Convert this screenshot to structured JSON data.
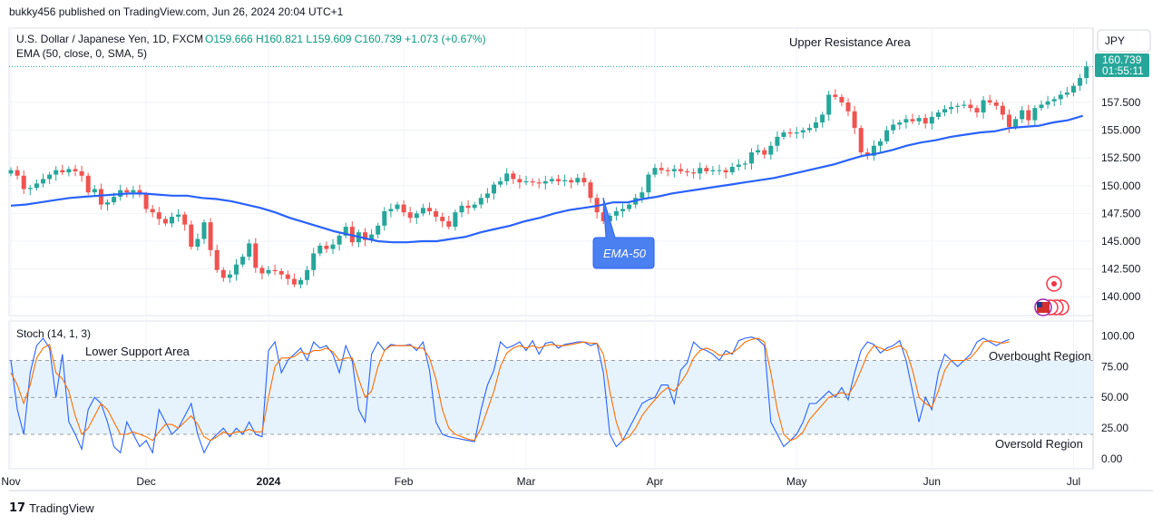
{
  "header": {
    "published": "bukky456 published on TradingView.com, Jun 26, 2024 20:04 UTC+1"
  },
  "footer": {
    "brand": "TradingView"
  },
  "chart_data": [
    {
      "type": "candlestick",
      "title": "U.S. Dollar / Japanese Yen, 1D, FXCM",
      "ohlc_label": "O159.666 H160.821 L159.609 C160.739 +1.073 (+0.67%)",
      "indicator_label": "EMA (50, close, 0, SMA, 5)",
      "currency": "JPY",
      "last_price": "160.739",
      "countdown": "01:55:11",
      "ylim": [
        138.3,
        164.2
      ],
      "y_ticks": [
        "157.500",
        "155.000",
        "152.500",
        "150.000",
        "147.500",
        "145.000",
        "142.500",
        "140.000"
      ],
      "x_ticks": [
        "Nov",
        "Dec",
        "2024",
        "Feb",
        "Mar",
        "Apr",
        "May",
        "Jun",
        "Jul"
      ],
      "x_tick_index": [
        0,
        21,
        40,
        61,
        80,
        100,
        122,
        143,
        165
      ],
      "series_close": [
        151.4,
        150.9,
        149.7,
        149.8,
        150.2,
        150.6,
        151.0,
        151.4,
        151.2,
        151.5,
        151.3,
        150.9,
        149.4,
        149.7,
        148.3,
        148.5,
        149.0,
        149.6,
        149.4,
        149.6,
        149.2,
        147.9,
        147.6,
        147.0,
        146.6,
        147.2,
        147.4,
        146.5,
        144.5,
        145.2,
        146.7,
        144.2,
        142.4,
        141.7,
        142.0,
        142.9,
        143.6,
        144.8,
        142.6,
        142.1,
        142.4,
        142.3,
        142.0,
        141.6,
        141.1,
        141.5,
        142.4,
        143.9,
        144.6,
        144.3,
        144.7,
        145.5,
        146.3,
        144.9,
        145.8,
        145.1,
        145.6,
        146.4,
        147.7,
        147.9,
        148.3,
        147.6,
        147.1,
        147.5,
        148.0,
        147.7,
        147.2,
        146.8,
        146.3,
        147.6,
        148.2,
        148.0,
        148.3,
        148.9,
        149.3,
        150.1,
        150.4,
        151.1,
        150.6,
        150.3,
        150.4,
        150.3,
        150.2,
        150.4,
        150.6,
        150.4,
        150.5,
        150.3,
        150.7,
        150.3,
        148.9,
        147.6,
        146.8,
        147.3,
        147.7,
        147.9,
        148.3,
        148.9,
        149.4,
        151.0,
        151.6,
        151.4,
        151.3,
        151.5,
        151.3,
        151.2,
        151.1,
        151.6,
        151.3,
        151.4,
        151.4,
        151.2,
        151.7,
        151.9,
        152.0,
        153.0,
        153.2,
        152.8,
        153.6,
        154.4,
        154.8,
        154.7,
        154.8,
        155.0,
        155.2,
        155.7,
        156.4,
        158.2,
        158.0,
        157.5,
        156.7,
        155.2,
        153.0,
        152.7,
        153.6,
        154.0,
        155.0,
        155.5,
        155.7,
        156.0,
        155.8,
        156.1,
        155.6,
        156.2,
        156.6,
        156.9,
        157.1,
        157.2,
        157.3,
        157.0,
        156.6,
        157.7,
        157.5,
        157.2,
        156.4,
        155.3,
        156.0,
        156.8,
        155.9,
        157.0,
        157.3,
        157.6,
        157.8,
        158.2,
        158.4,
        159.0,
        159.7,
        160.74
      ],
      "ema50": [
        148.2,
        148.3,
        148.5,
        148.7,
        148.9,
        149.0,
        149.1,
        149.2,
        149.3,
        149.3,
        149.2,
        149.1,
        149.1,
        148.9,
        148.8,
        148.6,
        148.3,
        148.0,
        147.6,
        147.1,
        146.7,
        146.3,
        145.9,
        145.6,
        145.3,
        145.0,
        144.9,
        144.9,
        145.0,
        145.0,
        145.2,
        145.4,
        145.8,
        146.1,
        146.4,
        146.8,
        147.1,
        147.5,
        147.8,
        148.0,
        148.2,
        148.5,
        148.5,
        148.8,
        149.0,
        149.3,
        149.5,
        149.7,
        149.9,
        150.1,
        150.3,
        150.5,
        150.7,
        151.0,
        151.3,
        151.6,
        151.9,
        152.3,
        152.7,
        152.9,
        153.2,
        153.6,
        153.9,
        154.1,
        154.4,
        154.6,
        154.8,
        154.9,
        155.2,
        155.3,
        155.4,
        155.7,
        155.9,
        156.3
      ],
      "ema50_start_index": 0,
      "ema50_step": 2.28,
      "stoch_title": "Stoch (14, 1, 3)",
      "stoch_ylim": [
        -8,
        112
      ],
      "stoch_ticks": [
        "100.00",
        "75.00",
        "50.00",
        "25.00",
        "0.00"
      ],
      "stoch_levels": [
        80,
        50,
        20
      ],
      "stoch_k": [
        80,
        40,
        20,
        70,
        92,
        98,
        90,
        50,
        85,
        30,
        20,
        8,
        40,
        50,
        45,
        30,
        10,
        5,
        30,
        20,
        10,
        15,
        5,
        40,
        30,
        20,
        25,
        35,
        45,
        20,
        5,
        15,
        20,
        25,
        18,
        25,
        20,
        30,
        20,
        18,
        88,
        95,
        70,
        80,
        85,
        90,
        80,
        95,
        90,
        92,
        85,
        70,
        92,
        80,
        40,
        30,
        85,
        95,
        88,
        93,
        92,
        92,
        93,
        88,
        95,
        72,
        30,
        20,
        18,
        17,
        16,
        15,
        14,
        40,
        60,
        72,
        95,
        90,
        92,
        95,
        88,
        96,
        85,
        94,
        95,
        90,
        93,
        94,
        95,
        95,
        92,
        94,
        70,
        20,
        10,
        15,
        25,
        35,
        45,
        48,
        50,
        60,
        60,
        45,
        72,
        78,
        95,
        90,
        88,
        85,
        80,
        88,
        85,
        96,
        98,
        99,
        97,
        92,
        30,
        20,
        10,
        15,
        20,
        30,
        45,
        45,
        50,
        55,
        50,
        58,
        48,
        70,
        88,
        95,
        93,
        86,
        90,
        92,
        96,
        80,
        55,
        30,
        50,
        40,
        70,
        85,
        80,
        75,
        80,
        85,
        95,
        98,
        95,
        92,
        95,
        97
      ],
      "stoch_d": [
        70,
        60,
        45,
        60,
        82,
        90,
        93,
        70,
        65,
        55,
        35,
        20,
        25,
        35,
        45,
        40,
        30,
        20,
        20,
        22,
        20,
        18,
        15,
        22,
        28,
        28,
        25,
        30,
        35,
        28,
        18,
        15,
        18,
        22,
        20,
        22,
        22,
        24,
        22,
        22,
        50,
        75,
        82,
        82,
        83,
        87,
        85,
        88,
        88,
        90,
        87,
        80,
        82,
        82,
        65,
        50,
        55,
        75,
        88,
        92,
        92,
        92,
        92,
        90,
        90,
        82,
        65,
        40,
        25,
        20,
        18,
        16,
        15,
        25,
        40,
        55,
        75,
        86,
        90,
        92,
        90,
        92,
        90,
        92,
        93,
        92,
        92,
        93,
        94,
        95,
        94,
        94,
        85,
        55,
        30,
        15,
        18,
        25,
        35,
        42,
        48,
        54,
        58,
        55,
        62,
        70,
        82,
        88,
        90,
        88,
        84,
        85,
        86,
        90,
        95,
        97,
        98,
        95,
        70,
        40,
        20,
        15,
        17,
        22,
        32,
        38,
        44,
        50,
        52,
        54,
        52,
        60,
        72,
        85,
        92,
        90,
        88,
        90,
        92,
        88,
        72,
        50,
        45,
        42,
        55,
        72,
        80,
        80,
        80,
        82,
        88,
        95,
        96,
        95,
        94,
        95
      ],
      "annotations": [
        "Upper Resistance Area",
        "EMA-50",
        "Lower Support Area",
        "Overbought Region",
        "Oversold Region"
      ]
    }
  ]
}
